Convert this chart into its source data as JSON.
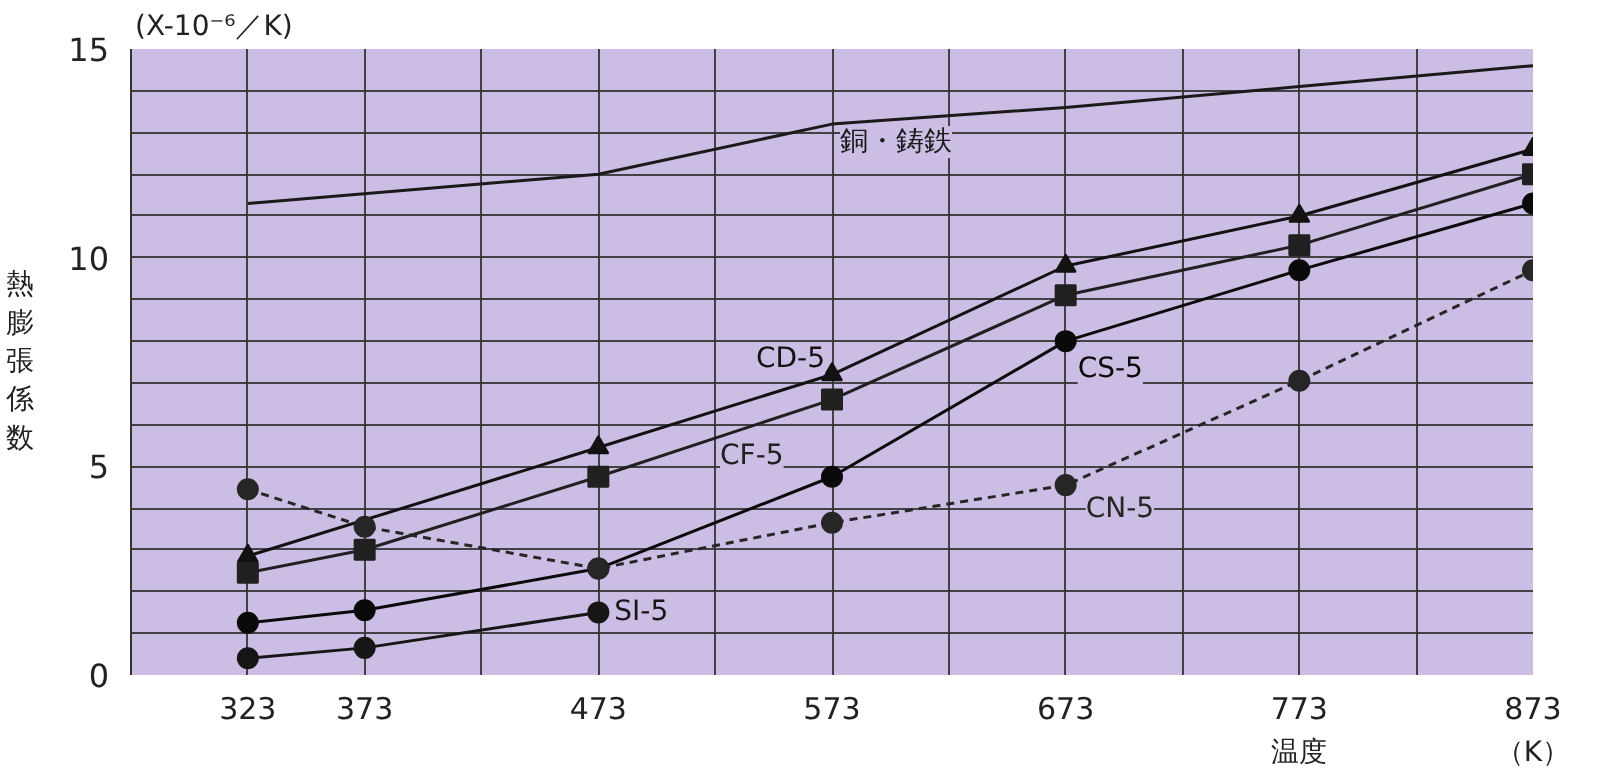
{
  "chart_data": {
    "type": "line",
    "xlabel": "温度",
    "ylabel": "熱膨張係数",
    "annotations": [
      "(X-10⁻⁶／K)",
      "（K）"
    ],
    "xlim": [
      273,
      873
    ],
    "ylim": [
      0,
      15
    ],
    "xticks": [
      323,
      373,
      {
        "value": 423,
        "label": null
      },
      473,
      {
        "value": 523,
        "label": null
      },
      573,
      {
        "value": 623,
        "label": null
      },
      673,
      {
        "value": 723,
        "label": null
      },
      773,
      {
        "value": 823,
        "label": null
      },
      873
    ],
    "yticks": [
      0,
      {
        "value": 1,
        "label": null
      },
      {
        "value": 2,
        "label": null
      },
      {
        "value": 3,
        "label": null
      },
      {
        "value": 4,
        "label": null
      },
      5,
      {
        "value": 6,
        "label": null
      },
      {
        "value": 7,
        "label": null
      },
      {
        "value": 8,
        "label": null
      },
      {
        "value": 9,
        "label": null
      },
      10,
      {
        "value": 11,
        "label": null
      },
      {
        "value": 12,
        "label": null
      },
      {
        "value": 13,
        "label": null
      },
      {
        "value": 14,
        "label": null
      },
      15
    ],
    "grid": true,
    "series": [
      {
        "name": "銅・鋳鉄",
        "color": "#1a1a1a",
        "marker": "none",
        "line_style": "solid",
        "x": [
          323,
          473,
          573,
          673,
          773,
          873
        ],
        "values": [
          11.3,
          12.0,
          13.2,
          13.6,
          14.1,
          14.6
        ]
      },
      {
        "name": "CD-5",
        "color": "#121212",
        "marker": "triangle",
        "line_style": "solid",
        "x": [
          323,
          473,
          573,
          673,
          773,
          873
        ],
        "values": [
          2.85,
          5.45,
          7.2,
          9.8,
          11.0,
          12.6
        ]
      },
      {
        "name": "CF-5",
        "color": "#202020",
        "marker": "square",
        "line_style": "solid",
        "x": [
          323,
          373,
          473,
          573,
          673,
          773,
          873
        ],
        "values": [
          2.45,
          3.0,
          4.75,
          6.6,
          9.1,
          10.3,
          12.0
        ]
      },
      {
        "name": "CS-5",
        "color": "#0a0a0a",
        "marker": "circle",
        "line_style": "solid",
        "x": [
          323,
          373,
          473,
          573,
          673,
          773,
          873
        ],
        "values": [
          1.25,
          1.55,
          2.55,
          4.75,
          8.0,
          9.7,
          11.3
        ]
      },
      {
        "name": "SI-5",
        "color": "#161616",
        "marker": "circle",
        "line_style": "solid",
        "x": [
          323,
          373,
          473
        ],
        "values": [
          0.4,
          0.65,
          1.5
        ]
      },
      {
        "name": "CN-5",
        "color": "#262626",
        "marker": "circle",
        "line_style": "dashed",
        "x": [
          323,
          373,
          473,
          573,
          673,
          773,
          873
        ],
        "values": [
          4.45,
          3.55,
          2.55,
          3.65,
          4.55,
          7.05,
          9.7
        ]
      }
    ]
  }
}
